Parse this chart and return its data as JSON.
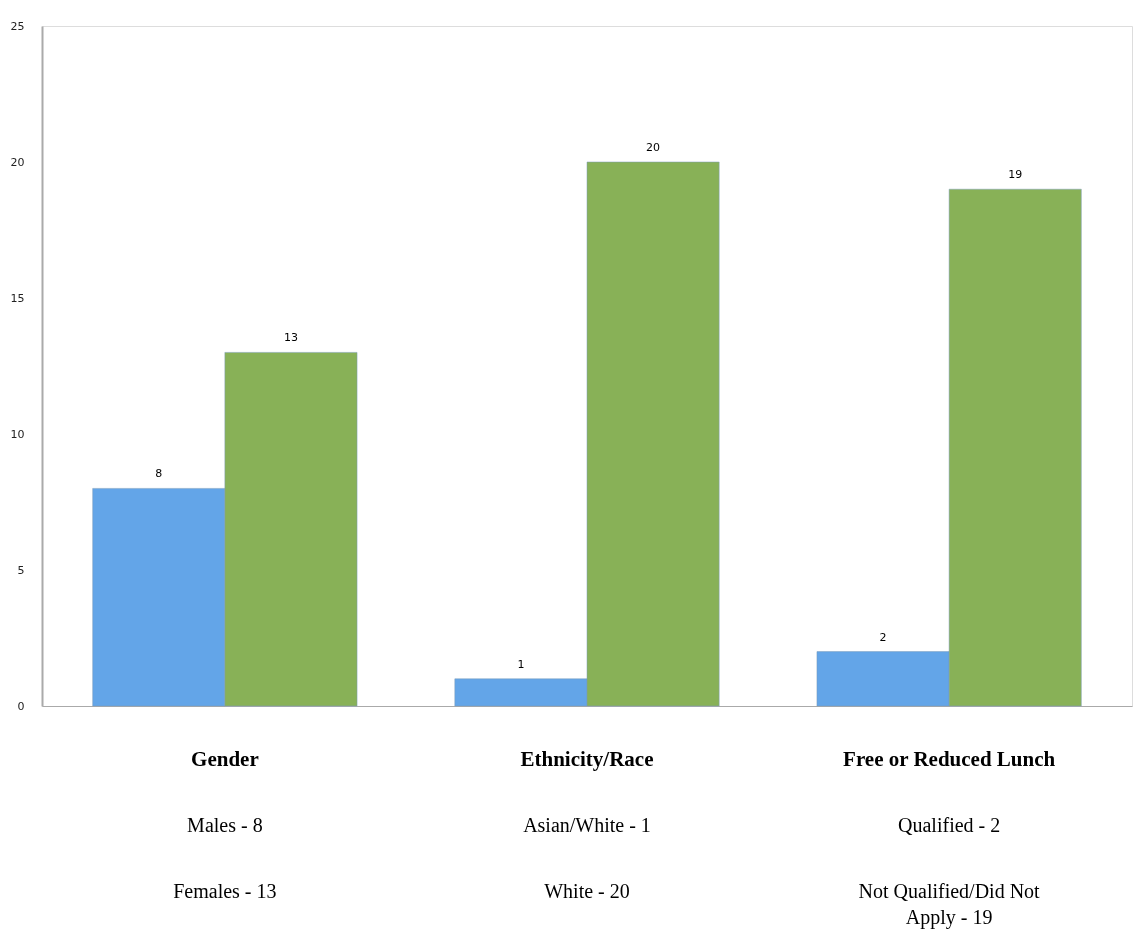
{
  "chart_data": {
    "type": "bar",
    "categories": [
      "Gender",
      "Ethnicity/Race",
      "Free or Reduced Lunch"
    ],
    "series": [
      {
        "color": "#63a5e8",
        "values": [
          8,
          1,
          2
        ]
      },
      {
        "color": "#88b157",
        "values": [
          13,
          20,
          19
        ]
      }
    ],
    "ylim": [
      0,
      25
    ],
    "yticks": [
      0,
      5,
      10,
      15,
      20,
      25
    ],
    "grid": false,
    "legend": false,
    "data_labels": true,
    "annotations": [
      "Males - 8",
      "Females - 13",
      "Asian/White - 1",
      "White - 20",
      "Qualified - 2",
      "Not Qualified/Did Not Apply - 19"
    ]
  }
}
